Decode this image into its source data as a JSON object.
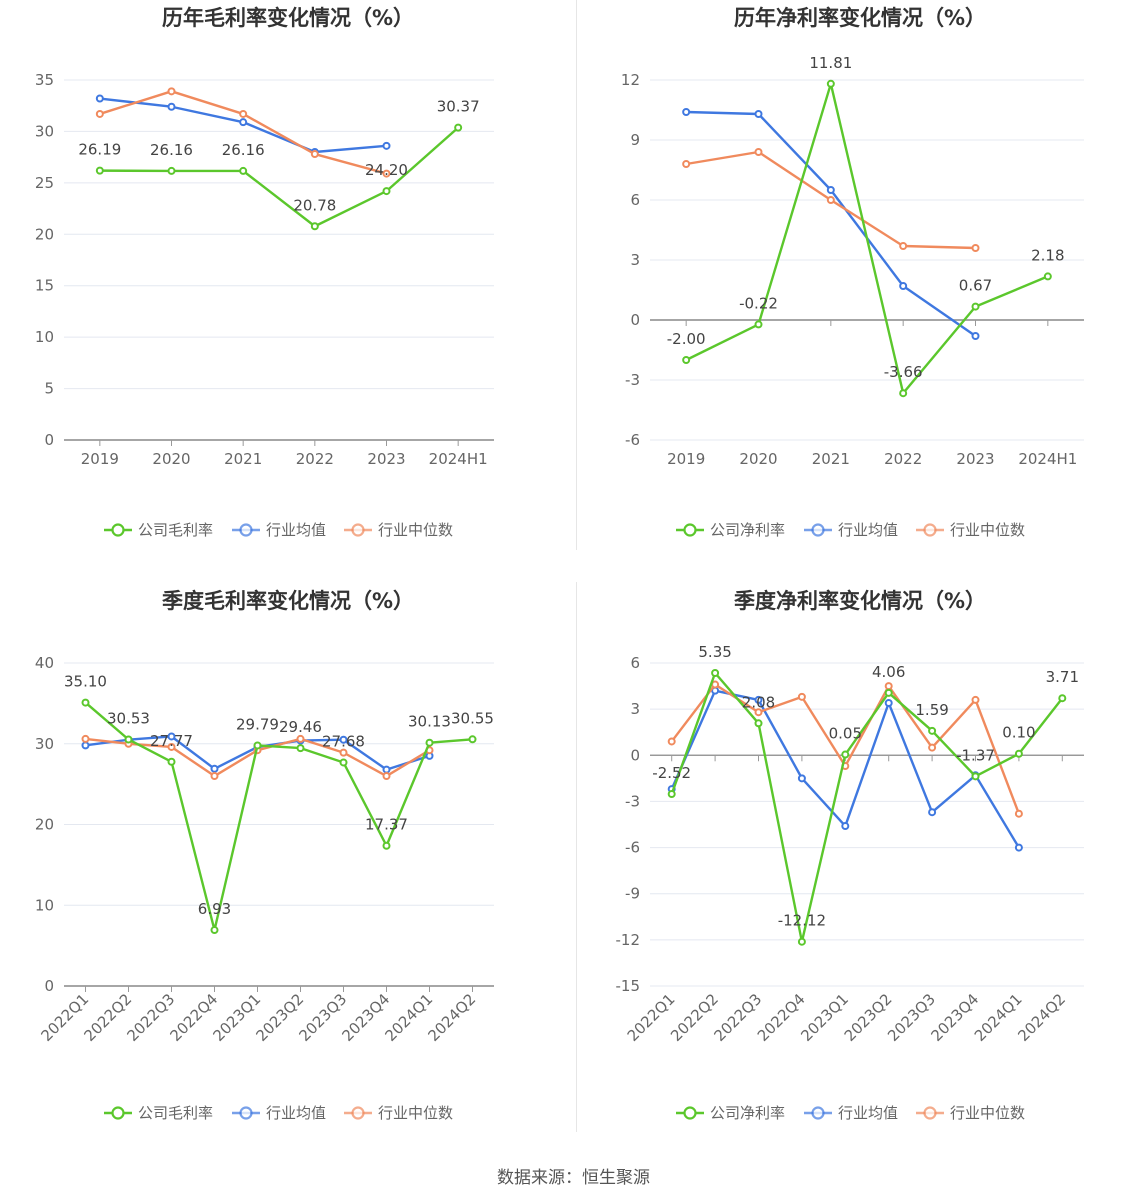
{
  "footer": {
    "source": "数据来源：恒生聚源"
  },
  "colors": {
    "company": "#5bc72c",
    "industry_avg": "#3f78e0",
    "industry_median": "#f08a5d"
  },
  "chart_data": [
    {
      "type": "line",
      "title": "历年毛利率变化情况（%）",
      "categories": [
        "2019",
        "2020",
        "2021",
        "2022",
        "2023",
        "2024H1"
      ],
      "ylim": [
        0,
        35
      ],
      "yticks": [
        0,
        5,
        10,
        15,
        20,
        25,
        30,
        35
      ],
      "grid": true,
      "legend_position": "bottom",
      "series": [
        {
          "name": "公司毛利率",
          "key": "company",
          "color": "#5bc72c",
          "values": [
            26.19,
            26.16,
            26.16,
            20.78,
            24.2,
            30.37
          ],
          "labels": [
            "26.19",
            "26.16",
            "26.16",
            "20.78",
            "24.20",
            "30.37"
          ]
        },
        {
          "name": "行业均值",
          "key": "industry_avg",
          "color": "#3f78e0",
          "values": [
            33.2,
            32.4,
            30.9,
            28.0,
            28.6,
            null
          ]
        },
        {
          "name": "行业中位数",
          "key": "industry_median",
          "color": "#f08a5d",
          "values": [
            31.7,
            33.9,
            31.7,
            27.8,
            25.9,
            null
          ]
        }
      ]
    },
    {
      "type": "line",
      "title": "历年净利率变化情况（%）",
      "categories": [
        "2019",
        "2020",
        "2021",
        "2022",
        "2023",
        "2024H1"
      ],
      "ylim": [
        -6,
        12
      ],
      "yticks": [
        -6,
        -3,
        0,
        3,
        6,
        9,
        12
      ],
      "grid": true,
      "legend_position": "bottom",
      "series": [
        {
          "name": "公司净利率",
          "key": "company",
          "color": "#5bc72c",
          "values": [
            -2.0,
            -0.22,
            11.81,
            -3.66,
            0.67,
            2.18
          ],
          "labels": [
            "-2.00",
            "-0.22",
            "11.81",
            "-3.66",
            "0.67",
            "2.18"
          ]
        },
        {
          "name": "行业均值",
          "key": "industry_avg",
          "color": "#3f78e0",
          "values": [
            10.4,
            10.3,
            6.5,
            1.7,
            -0.8,
            null
          ]
        },
        {
          "name": "行业中位数",
          "key": "industry_median",
          "color": "#f08a5d",
          "values": [
            7.8,
            8.4,
            6.0,
            3.7,
            3.6,
            null
          ]
        }
      ]
    },
    {
      "type": "line",
      "title": "季度毛利率变化情况（%）",
      "categories": [
        "2022Q1",
        "2022Q2",
        "2022Q3",
        "2022Q4",
        "2023Q1",
        "2023Q2",
        "2023Q3",
        "2023Q4",
        "2024Q1",
        "2024Q2"
      ],
      "ylim": [
        0,
        40
      ],
      "yticks": [
        0,
        10,
        20,
        30,
        40
      ],
      "grid": true,
      "legend_position": "bottom",
      "series": [
        {
          "name": "公司毛利率",
          "key": "company",
          "color": "#5bc72c",
          "values": [
            35.1,
            30.53,
            27.77,
            6.93,
            29.79,
            29.46,
            27.68,
            17.37,
            30.13,
            30.55
          ],
          "labels": [
            "35.10",
            "30.53",
            "27.77",
            "6.93",
            "29.79",
            "29.46",
            "27.68",
            "17.37",
            "30.13",
            "30.55"
          ]
        },
        {
          "name": "行业均值",
          "key": "industry_avg",
          "color": "#3f78e0",
          "values": [
            29.8,
            30.5,
            30.9,
            26.9,
            29.6,
            30.4,
            30.5,
            26.8,
            28.5,
            null
          ]
        },
        {
          "name": "行业中位数",
          "key": "industry_median",
          "color": "#f08a5d",
          "values": [
            30.6,
            30.0,
            29.6,
            26.0,
            29.2,
            30.6,
            28.9,
            26.0,
            29.2,
            null
          ]
        }
      ]
    },
    {
      "type": "line",
      "title": "季度净利率变化情况（%）",
      "categories": [
        "2022Q1",
        "2022Q2",
        "2022Q3",
        "2022Q4",
        "2023Q1",
        "2023Q2",
        "2023Q3",
        "2023Q4",
        "2024Q1",
        "2024Q2"
      ],
      "ylim": [
        -15,
        6
      ],
      "yticks": [
        -15,
        -12,
        -9,
        -6,
        -3,
        0,
        3,
        6
      ],
      "grid": true,
      "legend_position": "bottom",
      "series": [
        {
          "name": "公司净利率",
          "key": "company",
          "color": "#5bc72c",
          "values": [
            -2.52,
            5.35,
            2.08,
            -12.12,
            0.05,
            4.06,
            1.59,
            -1.37,
            0.1,
            3.71
          ],
          "labels": [
            "-2.52",
            "5.35",
            "2.08",
            "-12.12",
            "0.05",
            "4.06",
            "1.59",
            "-1.37",
            "0.10",
            "3.71"
          ]
        },
        {
          "name": "行业均值",
          "key": "industry_avg",
          "color": "#3f78e0",
          "values": [
            -2.2,
            4.2,
            3.6,
            -1.5,
            -4.6,
            3.4,
            -3.7,
            -1.3,
            -6.0,
            null
          ]
        },
        {
          "name": "行业中位数",
          "key": "industry_median",
          "color": "#f08a5d",
          "values": [
            0.9,
            4.6,
            2.8,
            3.8,
            -0.7,
            4.5,
            0.5,
            3.6,
            -3.8,
            null
          ]
        }
      ]
    }
  ]
}
